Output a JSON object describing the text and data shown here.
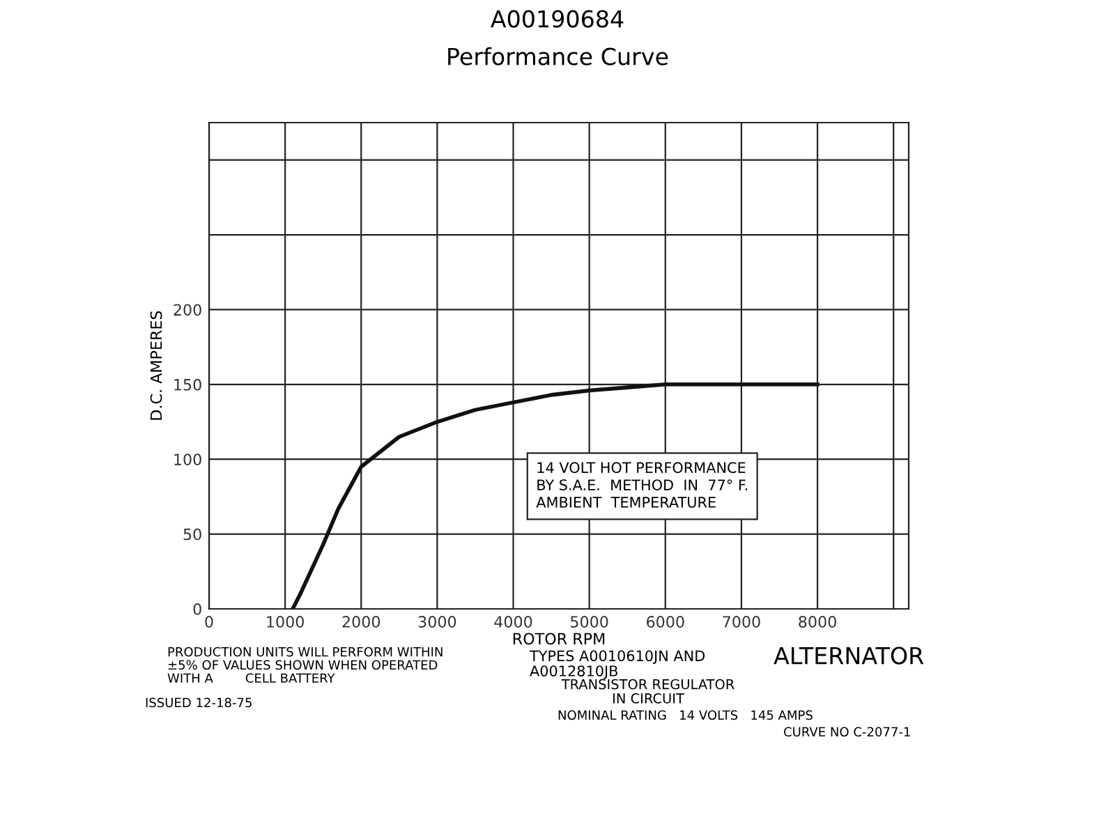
{
  "chart_data": {
    "type": "line",
    "title": "A00190684",
    "subtitle": "Performance Curve",
    "xlabel": "ROTOR RPM",
    "ylabel": "D.C. AMPERES",
    "x": [
      1100,
      1200,
      1500,
      1700,
      2000,
      2500,
      3000,
      3500,
      4000,
      4500,
      5000,
      5500,
      6000,
      7000,
      8000
    ],
    "series": [
      {
        "color": "#111111",
        "values": [
          0,
          10,
          43,
          67,
          95,
          115,
          125,
          133,
          138,
          143,
          146,
          148,
          150,
          150,
          150
        ]
      }
    ],
    "xlim": [
      0,
      9200
    ],
    "ylim": [
      0,
      325
    ],
    "xticks": [
      0,
      1000,
      2000,
      3000,
      4000,
      5000,
      6000,
      7000,
      8000,
      {
        "value": 9000,
        "label": null
      }
    ],
    "yticks": [
      0,
      50,
      100,
      150,
      200,
      {
        "value": 250,
        "label": null
      },
      {
        "value": 300,
        "label": null
      }
    ],
    "grid": true,
    "legend": false,
    "marker": "none",
    "line_style": "solid",
    "annotations": [
      "14 VOLT HOT PERFORMANCE\nBY S.A.E.  METHOD  IN  77° F.\nAMBIENT  TEMPERATURE",
      "PRODUCTION UNITS WILL PERFORM WITHIN\n±5% OF VALUES SHOWN WHEN OPERATED\nWITH A        CELL BATTERY",
      "TYPES A0010610JN AND\nA0012810JB",
      "TRANSISTOR REGULATOR\nIN CIRCUIT",
      "ALTERNATOR",
      "ISSUED 12-18-75",
      "NOMINAL RATING   14 VOLTS   145 AMPS",
      "CURVE NO C-2077-1"
    ]
  }
}
